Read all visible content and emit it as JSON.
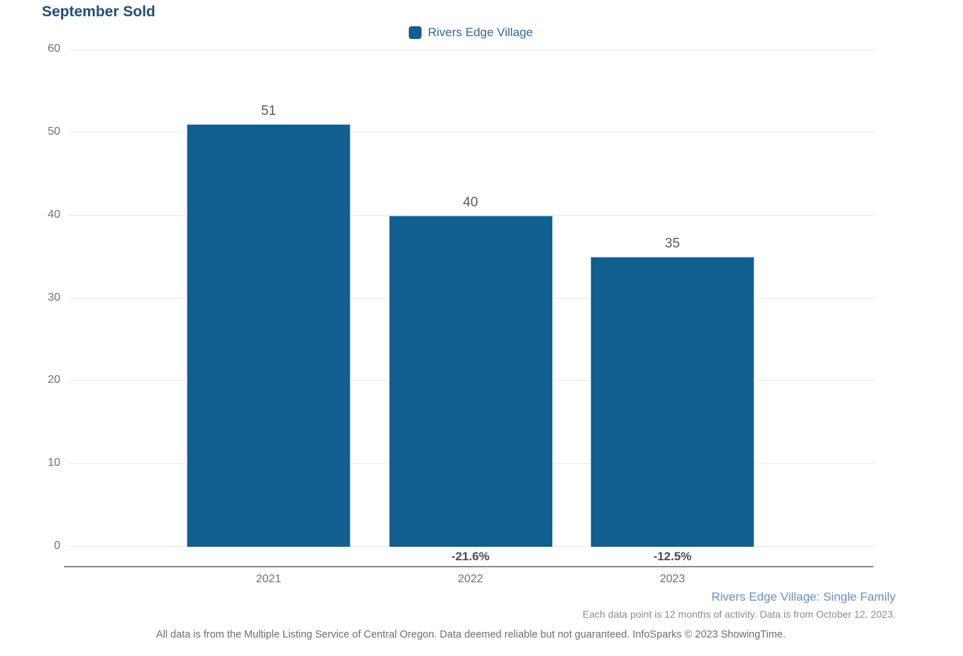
{
  "title": "September Sold",
  "legend": {
    "label": "Rivers Edge Village",
    "color": "#115f91"
  },
  "chart_data": {
    "type": "bar",
    "title": "September Sold",
    "categories": [
      "2021",
      "2022",
      "2023"
    ],
    "series": [
      {
        "name": "Rivers Edge Village",
        "values": [
          51,
          40,
          35
        ]
      }
    ],
    "bar_value_labels": [
      "51",
      "40",
      "35"
    ],
    "pct_change_labels": [
      "",
      "-21.6%",
      "-12.5%"
    ],
    "xlabel": "",
    "ylabel": "",
    "ylim": [
      0,
      60
    ],
    "yticks": [
      0,
      10,
      20,
      30,
      40,
      50,
      60
    ],
    "grid": true,
    "legend_position": "top-center",
    "bar_color": "#115f91"
  },
  "footnotes": {
    "series_note": "Rivers Edge Village: Single Family",
    "data_note": "Each data point is 12 months of activity. Data is from October 12, 2023.",
    "disclaimer": "All data is from the Multiple Listing Service of Central Oregon. Data deemed reliable but not guaranteed. InfoSparks © 2023 ShowingTime."
  }
}
